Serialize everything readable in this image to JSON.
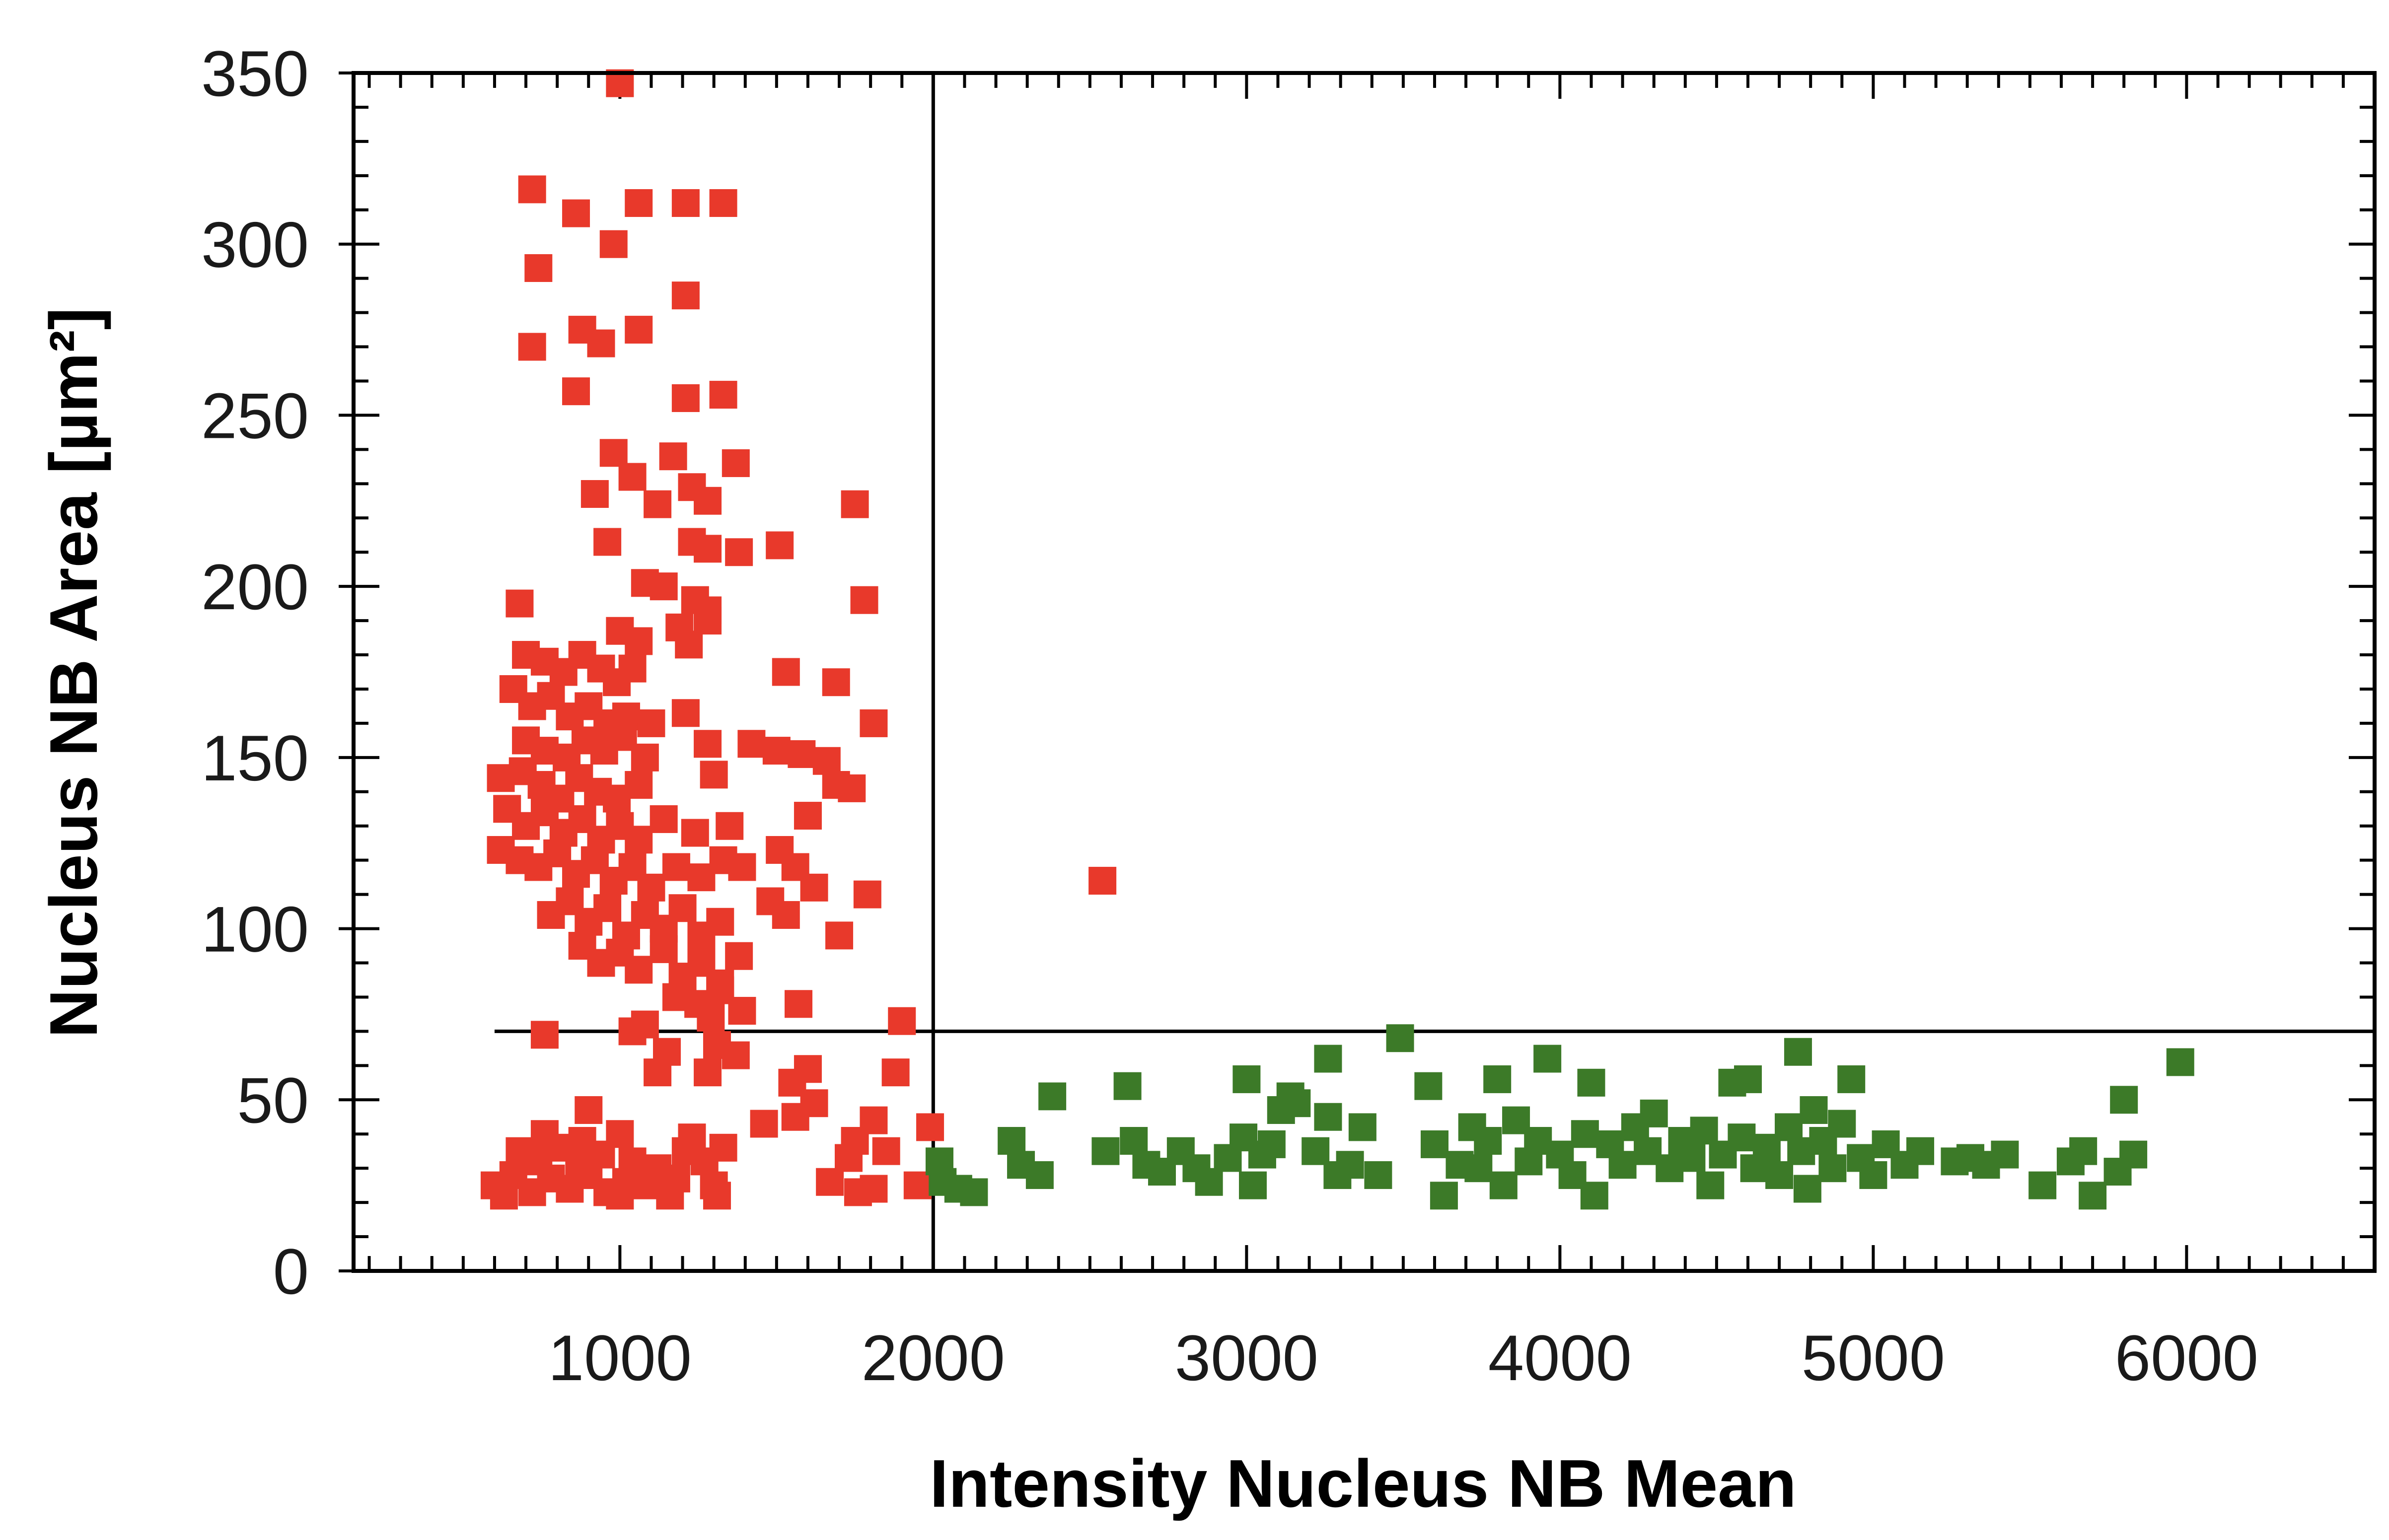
{
  "chart_data": {
    "type": "scatter",
    "xlabel": "Intensity Nucleus NB Mean",
    "ylabel": "Nucleus NB Area [µm²]",
    "xlim": [
      150,
      6600
    ],
    "ylim": [
      0,
      350
    ],
    "x_ticks": [
      1000,
      2000,
      3000,
      4000,
      5000,
      6000
    ],
    "y_ticks": [
      0,
      50,
      100,
      150,
      200,
      250,
      300,
      350
    ],
    "grid": false,
    "marker": "square",
    "gates": {
      "x_threshold": 2000,
      "y_threshold": 70
    },
    "series": [
      {
        "color": "#e8392b",
        "points": [
          [
            1000,
            347
          ],
          [
            720,
            316
          ],
          [
            860,
            309
          ],
          [
            1060,
            312
          ],
          [
            1210,
            312
          ],
          [
            1330,
            312
          ],
          [
            980,
            300
          ],
          [
            740,
            293
          ],
          [
            1210,
            285
          ],
          [
            880,
            275
          ],
          [
            940,
            271
          ],
          [
            1060,
            275
          ],
          [
            720,
            270
          ],
          [
            860,
            257
          ],
          [
            1210,
            255
          ],
          [
            1330,
            256
          ],
          [
            980,
            239
          ],
          [
            1170,
            238
          ],
          [
            1370,
            236
          ],
          [
            920,
            227
          ],
          [
            1040,
            232
          ],
          [
            1120,
            224
          ],
          [
            1230,
            229
          ],
          [
            1280,
            225
          ],
          [
            1750,
            224
          ],
          [
            960,
            213
          ],
          [
            1230,
            213
          ],
          [
            1280,
            211
          ],
          [
            1380,
            210
          ],
          [
            1510,
            212
          ],
          [
            1080,
            201
          ],
          [
            1140,
            200
          ],
          [
            680,
            195
          ],
          [
            1240,
            196
          ],
          [
            1280,
            193
          ],
          [
            1780,
            196
          ],
          [
            1190,
            188
          ],
          [
            1280,
            190
          ],
          [
            1000,
            187
          ],
          [
            1060,
            184
          ],
          [
            1220,
            183
          ],
          [
            700,
            180
          ],
          [
            760,
            178
          ],
          [
            820,
            175
          ],
          [
            880,
            180
          ],
          [
            940,
            176
          ],
          [
            990,
            172
          ],
          [
            1040,
            176
          ],
          [
            1530,
            175
          ],
          [
            1690,
            172
          ],
          [
            660,
            170
          ],
          [
            720,
            165
          ],
          [
            780,
            168
          ],
          [
            840,
            162
          ],
          [
            900,
            165
          ],
          [
            960,
            160
          ],
          [
            1020,
            162
          ],
          [
            1100,
            160
          ],
          [
            1210,
            163
          ],
          [
            1810,
            160
          ],
          [
            700,
            155
          ],
          [
            760,
            152
          ],
          [
            830,
            150
          ],
          [
            890,
            155
          ],
          [
            950,
            152
          ],
          [
            1010,
            156
          ],
          [
            1080,
            150
          ],
          [
            1280,
            154
          ],
          [
            1420,
            154
          ],
          [
            1500,
            152
          ],
          [
            1580,
            151
          ],
          [
            1660,
            149
          ],
          [
            620,
            144
          ],
          [
            690,
            146
          ],
          [
            750,
            142
          ],
          [
            810,
            138
          ],
          [
            870,
            144
          ],
          [
            930,
            140
          ],
          [
            990,
            138
          ],
          [
            1060,
            142
          ],
          [
            1300,
            145
          ],
          [
            1690,
            142
          ],
          [
            1740,
            141
          ],
          [
            640,
            135
          ],
          [
            700,
            130
          ],
          [
            760,
            134
          ],
          [
            820,
            128
          ],
          [
            880,
            132
          ],
          [
            940,
            126
          ],
          [
            1000,
            130
          ],
          [
            1060,
            126
          ],
          [
            1140,
            132
          ],
          [
            1240,
            128
          ],
          [
            1350,
            130
          ],
          [
            1600,
            133
          ],
          [
            620,
            123
          ],
          [
            680,
            120
          ],
          [
            740,
            118
          ],
          [
            800,
            122
          ],
          [
            860,
            116
          ],
          [
            920,
            120
          ],
          [
            980,
            114
          ],
          [
            1040,
            118
          ],
          [
            1100,
            112
          ],
          [
            1180,
            118
          ],
          [
            1260,
            115
          ],
          [
            1330,
            120
          ],
          [
            1390,
            118
          ],
          [
            1510,
            123
          ],
          [
            1560,
            118
          ],
          [
            1620,
            112
          ],
          [
            1790,
            110
          ],
          [
            780,
            104
          ],
          [
            840,
            108
          ],
          [
            900,
            102
          ],
          [
            960,
            106
          ],
          [
            1020,
            98
          ],
          [
            1080,
            104
          ],
          [
            1140,
            100
          ],
          [
            1200,
            106
          ],
          [
            1260,
            98
          ],
          [
            1320,
            102
          ],
          [
            1480,
            108
          ],
          [
            1530,
            104
          ],
          [
            1700,
            98
          ],
          [
            880,
            95
          ],
          [
            940,
            90
          ],
          [
            1000,
            93
          ],
          [
            1060,
            88
          ],
          [
            1140,
            94
          ],
          [
            1200,
            86
          ],
          [
            1260,
            90
          ],
          [
            1320,
            84
          ],
          [
            1380,
            92
          ],
          [
            1180,
            80
          ],
          [
            1250,
            78
          ],
          [
            1320,
            82
          ],
          [
            1390,
            76
          ],
          [
            1290,
            74
          ],
          [
            1570,
            78
          ],
          [
            1040,
            70
          ],
          [
            1080,
            72
          ],
          [
            760,
            69
          ],
          [
            1900,
            73
          ],
          [
            1150,
            64
          ],
          [
            1310,
            66
          ],
          [
            1370,
            63
          ],
          [
            1120,
            58
          ],
          [
            1280,
            58
          ],
          [
            1600,
            59
          ],
          [
            1880,
            58
          ],
          [
            1550,
            55
          ],
          [
            900,
            47
          ],
          [
            1620,
            49
          ],
          [
            1560,
            45
          ],
          [
            1810,
            44
          ],
          [
            1990,
            42
          ],
          [
            1460,
            43
          ],
          [
            760,
            40
          ],
          [
            880,
            38
          ],
          [
            1000,
            40
          ],
          [
            1230,
            39
          ],
          [
            1750,
            38
          ],
          [
            680,
            35
          ],
          [
            740,
            32
          ],
          [
            820,
            36
          ],
          [
            870,
            30
          ],
          [
            940,
            34
          ],
          [
            1040,
            32
          ],
          [
            1120,
            30
          ],
          [
            1210,
            35
          ],
          [
            1270,
            32
          ],
          [
            1330,
            36
          ],
          [
            1730,
            33
          ],
          [
            1850,
            35
          ],
          [
            600,
            25
          ],
          [
            660,
            28
          ],
          [
            720,
            23
          ],
          [
            780,
            27
          ],
          [
            840,
            24
          ],
          [
            900,
            28
          ],
          [
            960,
            23
          ],
          [
            1020,
            26
          ],
          [
            1080,
            25
          ],
          [
            1180,
            27
          ],
          [
            1300,
            25
          ],
          [
            1670,
            26
          ],
          [
            1760,
            23
          ],
          [
            1810,
            24
          ],
          [
            1950,
            25
          ],
          [
            630,
            22
          ],
          [
            1000,
            22
          ],
          [
            1160,
            22
          ],
          [
            1310,
            22
          ],
          [
            2540,
            114
          ]
        ]
      },
      {
        "color": "#3c7a28",
        "points": [
          [
            2020,
            32
          ],
          [
            2030,
            26
          ],
          [
            2080,
            24
          ],
          [
            2130,
            23
          ],
          [
            2250,
            38
          ],
          [
            2280,
            31
          ],
          [
            2340,
            28
          ],
          [
            2380,
            51
          ],
          [
            2550,
            35
          ],
          [
            2620,
            54
          ],
          [
            2640,
            38
          ],
          [
            2680,
            31
          ],
          [
            2730,
            29
          ],
          [
            2790,
            35
          ],
          [
            2840,
            30
          ],
          [
            2880,
            26
          ],
          [
            2940,
            33
          ],
          [
            2990,
            39
          ],
          [
            3000,
            56
          ],
          [
            3020,
            25
          ],
          [
            3050,
            34
          ],
          [
            3080,
            37
          ],
          [
            3110,
            47
          ],
          [
            3140,
            51
          ],
          [
            3160,
            49
          ],
          [
            3220,
            35
          ],
          [
            3260,
            62
          ],
          [
            3260,
            45
          ],
          [
            3290,
            28
          ],
          [
            3330,
            31
          ],
          [
            3370,
            42
          ],
          [
            3420,
            28
          ],
          [
            3490,
            68
          ],
          [
            3580,
            54
          ],
          [
            3600,
            37
          ],
          [
            3630,
            22
          ],
          [
            3680,
            31
          ],
          [
            3720,
            42
          ],
          [
            3740,
            30
          ],
          [
            3770,
            38
          ],
          [
            3800,
            56
          ],
          [
            3820,
            25
          ],
          [
            3860,
            44
          ],
          [
            3900,
            32
          ],
          [
            3930,
            38
          ],
          [
            3960,
            62
          ],
          [
            4000,
            34
          ],
          [
            4040,
            28
          ],
          [
            4080,
            40
          ],
          [
            4100,
            55
          ],
          [
            4110,
            22
          ],
          [
            4160,
            37
          ],
          [
            4200,
            31
          ],
          [
            4240,
            42
          ],
          [
            4280,
            35
          ],
          [
            4300,
            46
          ],
          [
            4350,
            30
          ],
          [
            4390,
            38
          ],
          [
            4420,
            33
          ],
          [
            4460,
            41
          ],
          [
            4480,
            25
          ],
          [
            4520,
            34
          ],
          [
            4550,
            55
          ],
          [
            4580,
            39
          ],
          [
            4600,
            56
          ],
          [
            4620,
            30
          ],
          [
            4660,
            36
          ],
          [
            4700,
            28
          ],
          [
            4730,
            42
          ],
          [
            4760,
            64
          ],
          [
            4770,
            35
          ],
          [
            4790,
            24
          ],
          [
            4810,
            47
          ],
          [
            4840,
            38
          ],
          [
            4870,
            30
          ],
          [
            4900,
            43
          ],
          [
            4930,
            56
          ],
          [
            4960,
            33
          ],
          [
            5000,
            28
          ],
          [
            5040,
            37
          ],
          [
            5100,
            31
          ],
          [
            5150,
            35
          ],
          [
            5260,
            32
          ],
          [
            5310,
            33
          ],
          [
            5360,
            31
          ],
          [
            5420,
            34
          ],
          [
            5540,
            25
          ],
          [
            5630,
            32
          ],
          [
            5670,
            35
          ],
          [
            5700,
            22
          ],
          [
            5780,
            29
          ],
          [
            5800,
            50
          ],
          [
            5830,
            34
          ],
          [
            5980,
            61
          ]
        ]
      }
    ]
  }
}
